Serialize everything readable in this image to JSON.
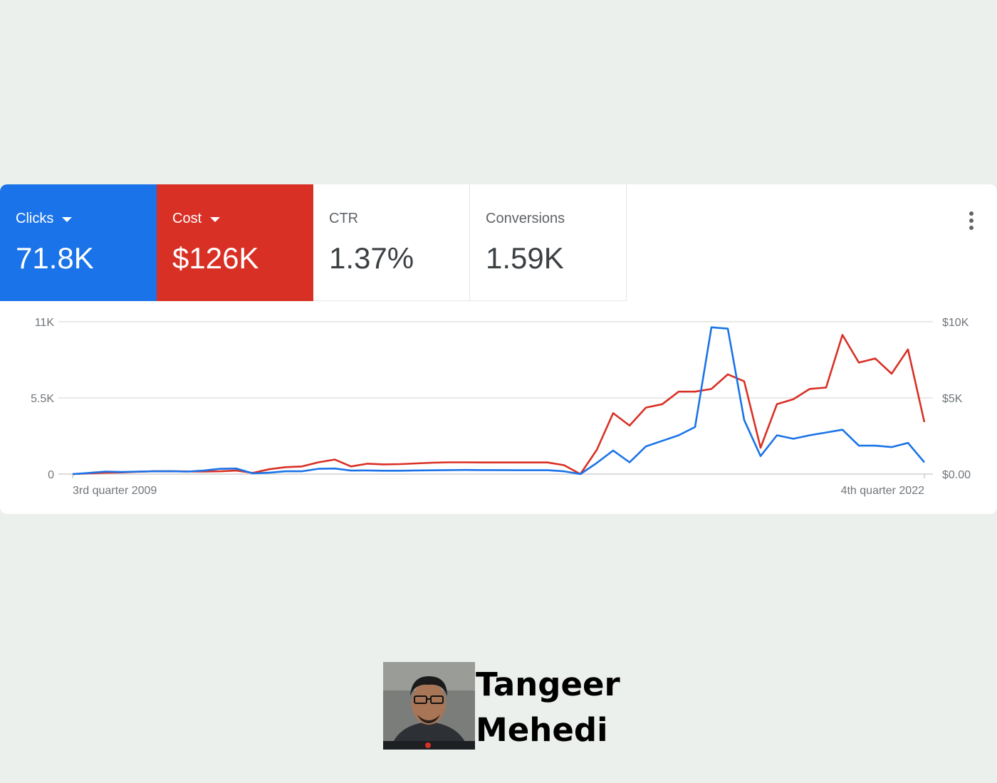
{
  "metrics": [
    {
      "label": "Clicks",
      "value": "71.8K",
      "selected": true,
      "color": "#1a73e8"
    },
    {
      "label": "Cost",
      "value": "$126K",
      "selected": true,
      "color": "#d93025"
    },
    {
      "label": "CTR",
      "value": "1.37%",
      "selected": false
    },
    {
      "label": "Conversions",
      "value": "1.59K",
      "selected": false
    }
  ],
  "menu_icon": "more-vert-icon",
  "chart_data": {
    "type": "line",
    "x_range_labels": [
      "3rd quarter 2009",
      "4th quarter 2022"
    ],
    "left_axis": {
      "ticks": [
        "0",
        "5.5K",
        "11K"
      ],
      "ylim": [
        0,
        11000
      ]
    },
    "right_axis": {
      "ticks": [
        "$0.00",
        "$5K",
        "$10K"
      ],
      "ylim": [
        0,
        10000
      ]
    },
    "grid": true,
    "series": [
      {
        "name": "Clicks",
        "color": "#1a73e8",
        "axis": "left",
        "values": [
          0,
          80,
          180,
          150,
          180,
          200,
          200,
          180,
          250,
          380,
          400,
          50,
          100,
          200,
          200,
          380,
          400,
          250,
          260,
          240,
          240,
          260,
          270,
          290,
          300,
          290,
          290,
          280,
          280,
          280,
          200,
          0,
          800,
          1700,
          850,
          2000,
          2400,
          2800,
          3400,
          10600,
          10500,
          3900,
          1300,
          2800,
          2550,
          2800,
          3000,
          3200,
          2050,
          2050,
          1950,
          2250,
          850
        ]
      },
      {
        "name": "Cost",
        "color": "#d93025",
        "axis": "left",
        "values": [
          0,
          50,
          100,
          120,
          170,
          200,
          200,
          190,
          180,
          200,
          250,
          80,
          350,
          500,
          550,
          850,
          1050,
          550,
          750,
          700,
          720,
          770,
          820,
          850,
          850,
          840,
          840,
          840,
          840,
          840,
          640,
          0,
          1750,
          4400,
          3500,
          4800,
          5050,
          5950,
          5950,
          6150,
          7200,
          6700,
          1900,
          5050,
          5400,
          6150,
          6250,
          10050,
          8050,
          8350,
          7250,
          9000,
          3750
        ]
      }
    ]
  },
  "author": {
    "name_line1": "Tangeer",
    "name_line2": "Mehedi"
  }
}
